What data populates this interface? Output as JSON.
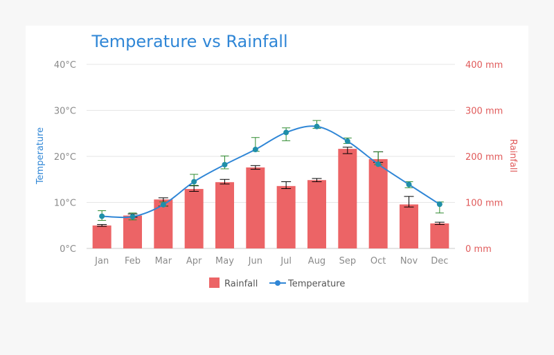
{
  "chart_data": {
    "type": "bar",
    "title": "Temperature vs Rainfall",
    "categories": [
      "Jan",
      "Feb",
      "Mar",
      "Apr",
      "May",
      "Jun",
      "Jul",
      "Aug",
      "Sep",
      "Oct",
      "Nov",
      "Dec"
    ],
    "y_left": {
      "label": "Temperature",
      "ticks": [
        "0°C",
        "10°C",
        "20°C",
        "30°C",
        "40°C"
      ],
      "range": [
        0,
        40
      ]
    },
    "y_right": {
      "label": "Rainfall",
      "ticks": [
        "0 mm",
        "100 mm",
        "200 mm",
        "300 mm",
        "400 mm"
      ],
      "range": [
        0,
        400
      ]
    },
    "series": [
      {
        "name": "Rainfall",
        "type": "bar",
        "axis": "right",
        "color": "#ec6466",
        "values": [
          49.9,
          71.5,
          106.4,
          129.2,
          144.0,
          176.0,
          135.6,
          148.5,
          216.4,
          194.1,
          95.6,
          54.4
        ],
        "error_low": [
          48,
          68,
          92,
          124,
          140,
          172,
          130,
          145,
          206,
          187,
          90,
          52
        ],
        "error_high": [
          52,
          75,
          110,
          136,
          150,
          180,
          145,
          152,
          220,
          210,
          113,
          57
        ]
      },
      {
        "name": "Temperature",
        "type": "spline",
        "axis": "left",
        "color": "#2f86d6",
        "values": [
          7.0,
          6.9,
          9.5,
          14.5,
          18.2,
          21.5,
          25.2,
          26.5,
          23.3,
          18.3,
          13.9,
          9.6
        ],
        "error_low": [
          6.1,
          6.2,
          9.2,
          13.7,
          17.3,
          21.1,
          23.4,
          26.1,
          22.8,
          18.2,
          13.2,
          7.7
        ],
        "error_high": [
          8.2,
          7.7,
          10.1,
          16.1,
          20.1,
          24.1,
          26.2,
          27.8,
          24.0,
          21.0,
          14.5,
          10.1
        ]
      }
    ],
    "legend": {
      "placement": "bottom-center",
      "items": [
        "Rainfall",
        "Temperature"
      ]
    },
    "grid": true
  }
}
